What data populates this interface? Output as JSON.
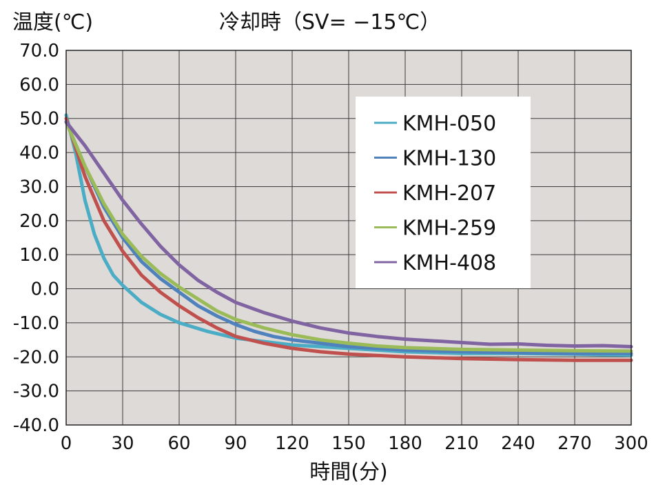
{
  "chart_data": {
    "type": "line",
    "title": "冷却時（SV= −15℃）",
    "ylabel": "温度(℃)",
    "xlabel": "時間(分)",
    "xlim": [
      0,
      300
    ],
    "ylim": [
      -40,
      70
    ],
    "x_ticks": [
      0,
      30,
      60,
      90,
      120,
      150,
      180,
      210,
      240,
      270,
      300
    ],
    "y_ticks": [
      70,
      60,
      50,
      40,
      30,
      20,
      10,
      0,
      -10,
      -20,
      -30,
      -40
    ],
    "x_tick_labels": [
      "0",
      "30",
      "60",
      "90",
      "120",
      "150",
      "180",
      "210",
      "240",
      "270",
      "300"
    ],
    "y_tick_labels": [
      "70.0",
      "60.0",
      "50.0",
      "40.0",
      "30.0",
      "20.0",
      "10.0",
      "0.0",
      "-10.0",
      "-20.0",
      "-30.0",
      "-40.0"
    ],
    "grid": true,
    "legend_position": "top-right",
    "plot_background": "#dedad8",
    "series": [
      {
        "name": "KMH-050",
        "color": "#4bacc6",
        "points": [
          [
            0,
            51
          ],
          [
            5,
            40
          ],
          [
            10,
            26
          ],
          [
            15,
            16
          ],
          [
            20,
            9
          ],
          [
            25,
            4
          ],
          [
            30,
            1
          ],
          [
            40,
            -4
          ],
          [
            50,
            -7.5
          ],
          [
            60,
            -10
          ],
          [
            75,
            -12.5
          ],
          [
            90,
            -14.5
          ],
          [
            105,
            -15.5
          ],
          [
            120,
            -16.5
          ],
          [
            150,
            -17.5
          ],
          [
            180,
            -18.5
          ],
          [
            210,
            -19
          ],
          [
            240,
            -19
          ],
          [
            270,
            -19.2
          ],
          [
            300,
            -19.5
          ]
        ]
      },
      {
        "name": "KMH-130",
        "color": "#4f81bd",
        "points": [
          [
            0,
            49
          ],
          [
            10,
            36
          ],
          [
            20,
            24
          ],
          [
            30,
            15
          ],
          [
            40,
            8
          ],
          [
            50,
            3
          ],
          [
            60,
            -1
          ],
          [
            70,
            -5
          ],
          [
            80,
            -8
          ],
          [
            90,
            -10.5
          ],
          [
            100,
            -12.5
          ],
          [
            110,
            -14
          ],
          [
            120,
            -15
          ],
          [
            135,
            -16
          ],
          [
            150,
            -17
          ],
          [
            180,
            -18
          ],
          [
            210,
            -18.5
          ],
          [
            240,
            -18.8
          ],
          [
            270,
            -19
          ],
          [
            300,
            -19
          ]
        ]
      },
      {
        "name": "KMH-207",
        "color": "#c0504d",
        "points": [
          [
            0,
            50
          ],
          [
            10,
            33
          ],
          [
            20,
            20
          ],
          [
            30,
            11
          ],
          [
            40,
            4
          ],
          [
            50,
            -1
          ],
          [
            60,
            -5
          ],
          [
            70,
            -8.5
          ],
          [
            80,
            -11.5
          ],
          [
            90,
            -14
          ],
          [
            105,
            -16
          ],
          [
            120,
            -17.5
          ],
          [
            135,
            -18.5
          ],
          [
            150,
            -19.2
          ],
          [
            165,
            -19.6
          ],
          [
            180,
            -20
          ],
          [
            210,
            -20.5
          ],
          [
            240,
            -20.8
          ],
          [
            270,
            -21
          ],
          [
            300,
            -21
          ]
        ]
      },
      {
        "name": "KMH-259",
        "color": "#9bbb59",
        "points": [
          [
            0,
            49
          ],
          [
            10,
            36
          ],
          [
            20,
            25
          ],
          [
            30,
            16
          ],
          [
            40,
            9.5
          ],
          [
            50,
            4.5
          ],
          [
            60,
            0.5
          ],
          [
            70,
            -3
          ],
          [
            80,
            -6.5
          ],
          [
            90,
            -9
          ],
          [
            105,
            -11.5
          ],
          [
            120,
            -13.5
          ],
          [
            135,
            -15
          ],
          [
            150,
            -16
          ],
          [
            165,
            -16.8
          ],
          [
            180,
            -17.3
          ],
          [
            210,
            -17.8
          ],
          [
            240,
            -18
          ],
          [
            270,
            -18.2
          ],
          [
            300,
            -18.3
          ]
        ]
      },
      {
        "name": "KMH-408",
        "color": "#8064a2",
        "points": [
          [
            0,
            49
          ],
          [
            10,
            42
          ],
          [
            20,
            34
          ],
          [
            30,
            26
          ],
          [
            40,
            19
          ],
          [
            50,
            12.5
          ],
          [
            60,
            7
          ],
          [
            70,
            2.5
          ],
          [
            80,
            -1
          ],
          [
            90,
            -4
          ],
          [
            105,
            -7
          ],
          [
            120,
            -9.5
          ],
          [
            135,
            -11.5
          ],
          [
            150,
            -13
          ],
          [
            165,
            -14
          ],
          [
            180,
            -14.8
          ],
          [
            210,
            -15.8
          ],
          [
            225,
            -16.3
          ],
          [
            240,
            -16.2
          ],
          [
            255,
            -16.6
          ],
          [
            270,
            -16.8
          ],
          [
            285,
            -16.7
          ],
          [
            300,
            -17
          ]
        ]
      }
    ]
  }
}
